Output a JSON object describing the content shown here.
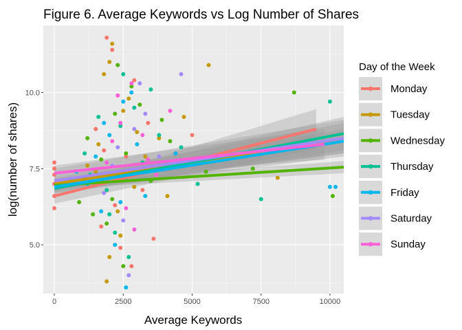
{
  "chart_data": {
    "type": "scatter",
    "title": "Figure 6. Average Keywords vs Log Number of Shares",
    "xlabel": "Average Keywords",
    "ylabel": "log(number of shares)",
    "xlim": [
      -400,
      10500
    ],
    "ylim": [
      3.4,
      12.2
    ],
    "x_ticks": [
      0,
      2500,
      5000,
      7500,
      10000
    ],
    "x_tick_labels": [
      "0",
      "2500",
      "5000",
      "7500",
      "10000"
    ],
    "y_ticks": [
      5.0,
      7.5,
      10.0
    ],
    "y_tick_labels": [
      "5.0",
      "7.5",
      "10.0"
    ],
    "grid": true,
    "legend": {
      "title": "Day of the Week",
      "position": "right"
    },
    "series": [
      {
        "name": "Monday",
        "color": "#F8766D",
        "points": [
          [
            0,
            6.2
          ],
          [
            0,
            6.6
          ],
          [
            0,
            7.0
          ],
          [
            0,
            7.3
          ],
          [
            0,
            7.5
          ],
          [
            0,
            7.7
          ],
          [
            1900,
            11.8
          ],
          [
            2100,
            11.4
          ],
          [
            2300,
            9.9
          ],
          [
            1800,
            8.1
          ],
          [
            2600,
            7.9
          ],
          [
            3200,
            6.8
          ],
          [
            2400,
            4.9
          ],
          [
            2800,
            4.3
          ],
          [
            3600,
            5.2
          ],
          [
            5000,
            8.6
          ],
          [
            1500,
            8.8
          ],
          [
            2900,
            10.4
          ],
          [
            2200,
            6.3
          ],
          [
            4300,
            7.6
          ],
          [
            3400,
            9.0
          ],
          [
            1700,
            5.6
          ]
        ],
        "trend": {
          "x": [
            0,
            9500
          ],
          "y": [
            6.6,
            8.8
          ],
          "ci_low": [
            6.35,
            8.15
          ],
          "ci_high": [
            6.85,
            9.45
          ]
        }
      },
      {
        "name": "Tuesday",
        "color": "#C49A00",
        "points": [
          [
            2100,
            11.6
          ],
          [
            2000,
            11.0
          ],
          [
            1800,
            10.6
          ],
          [
            5600,
            10.9
          ],
          [
            2500,
            9.4
          ],
          [
            3000,
            8.7
          ],
          [
            1500,
            7.4
          ],
          [
            2300,
            6.1
          ],
          [
            1900,
            3.8
          ],
          [
            2400,
            5.3
          ],
          [
            3300,
            7.9
          ],
          [
            4100,
            6.6
          ],
          [
            2700,
            9.8
          ],
          [
            1600,
            8.3
          ],
          [
            8100,
            7.2
          ],
          [
            2000,
            4.6
          ],
          [
            3800,
            8.5
          ],
          [
            2900,
            6.9
          ],
          [
            1200,
            7.6
          ],
          [
            4700,
            9.2
          ]
        ],
        "trend": {
          "x": [
            0,
            10500
          ],
          "y": [
            7.0,
            8.5
          ],
          "ci_low": [
            6.8,
            8.0
          ],
          "ci_high": [
            7.2,
            9.0
          ]
        }
      },
      {
        "name": "Wednesday",
        "color": "#53B400",
        "points": [
          [
            8700,
            10.0
          ],
          [
            1200,
            8.5
          ],
          [
            700,
            7.0
          ],
          [
            2200,
            9.3
          ],
          [
            2800,
            10.2
          ],
          [
            3500,
            7.1
          ],
          [
            1900,
            5.7
          ],
          [
            2500,
            4.3
          ],
          [
            4200,
            8.4
          ],
          [
            2100,
            6.5
          ],
          [
            3100,
            9.6
          ],
          [
            900,
            6.4
          ],
          [
            7200,
            7.5
          ],
          [
            1700,
            7.8
          ],
          [
            2600,
            8.0
          ],
          [
            10100,
            6.6
          ],
          [
            1400,
            6.0
          ],
          [
            3900,
            9.1
          ],
          [
            2300,
            10.9
          ],
          [
            5500,
            7.4
          ]
        ],
        "trend": {
          "x": [
            0,
            10500
          ],
          "y": [
            6.95,
            7.55
          ],
          "ci_low": [
            6.85,
            7.35
          ],
          "ci_high": [
            7.05,
            7.75
          ]
        }
      },
      {
        "name": "Thursday",
        "color": "#00C094",
        "points": [
          [
            10000,
            9.7
          ],
          [
            7500,
            6.5
          ],
          [
            2500,
            10.6
          ],
          [
            1600,
            9.2
          ],
          [
            3800,
            8.6
          ],
          [
            2000,
            6.0
          ],
          [
            2700,
            4.6
          ],
          [
            1300,
            7.3
          ],
          [
            3200,
            7.7
          ],
          [
            2400,
            8.9
          ],
          [
            4600,
            8.2
          ],
          [
            1900,
            6.8
          ],
          [
            2900,
            9.5
          ],
          [
            5200,
            7.0
          ],
          [
            2200,
            5.4
          ],
          [
            1100,
            8.0
          ],
          [
            3500,
            10.1
          ],
          [
            2600,
            7.2
          ]
        ],
        "trend": {
          "x": [
            0,
            10500
          ],
          "y": [
            6.85,
            8.65
          ],
          "ci_low": [
            6.65,
            8.1
          ],
          "ci_high": [
            7.05,
            9.2
          ]
        }
      },
      {
        "name": "Friday",
        "color": "#00B6EB",
        "points": [
          [
            10000,
            6.9
          ],
          [
            10200,
            6.9
          ],
          [
            2600,
            3.6
          ],
          [
            1200,
            7.0
          ],
          [
            2400,
            6.4
          ],
          [
            3000,
            8.3
          ],
          [
            1800,
            9.0
          ],
          [
            3600,
            7.5
          ],
          [
            2200,
            5.0
          ],
          [
            4400,
            8.0
          ],
          [
            1500,
            7.9
          ],
          [
            2800,
            10.0
          ],
          [
            800,
            7.4
          ],
          [
            3300,
            6.6
          ],
          [
            2000,
            8.6
          ],
          [
            5100,
            7.8
          ],
          [
            2500,
            9.7
          ],
          [
            1700,
            6.1
          ]
        ],
        "trend": {
          "x": [
            0,
            10500
          ],
          "y": [
            6.9,
            8.4
          ],
          "ci_low": [
            6.75,
            8.0
          ],
          "ci_high": [
            7.05,
            8.8
          ]
        }
      },
      {
        "name": "Saturday",
        "color": "#A58AFF",
        "points": [
          [
            4600,
            10.6
          ],
          [
            2700,
            4.0
          ],
          [
            2900,
            8.8
          ],
          [
            2100,
            7.6
          ],
          [
            3300,
            9.3
          ],
          [
            1800,
            6.7
          ],
          [
            3800,
            7.9
          ],
          [
            2500,
            5.8
          ],
          [
            3100,
            10.3
          ],
          [
            2300,
            8.2
          ]
        ],
        "trend": {
          "x": [
            0,
            10500
          ],
          "y": [
            7.1,
            8.5
          ],
          "ci_low": [
            6.7,
            7.9
          ],
          "ci_high": [
            7.5,
            9.1
          ]
        }
      },
      {
        "name": "Sunday",
        "color": "#FB61D7",
        "points": [
          [
            2800,
            10.3
          ],
          [
            2400,
            9.0
          ],
          [
            1900,
            7.7
          ],
          [
            3200,
            8.6
          ],
          [
            2600,
            6.2
          ],
          [
            3700,
            7.3
          ],
          [
            2100,
            8.4
          ],
          [
            4200,
            9.4
          ],
          [
            1600,
            7.1
          ],
          [
            2900,
            5.5
          ],
          [
            2300,
            9.9
          ],
          [
            3400,
            7.8
          ]
        ],
        "trend": {
          "x": [
            0,
            9800
          ],
          "y": [
            7.35,
            8.3
          ],
          "ci_low": [
            7.1,
            7.8
          ],
          "ci_high": [
            7.6,
            8.8
          ]
        }
      }
    ]
  }
}
